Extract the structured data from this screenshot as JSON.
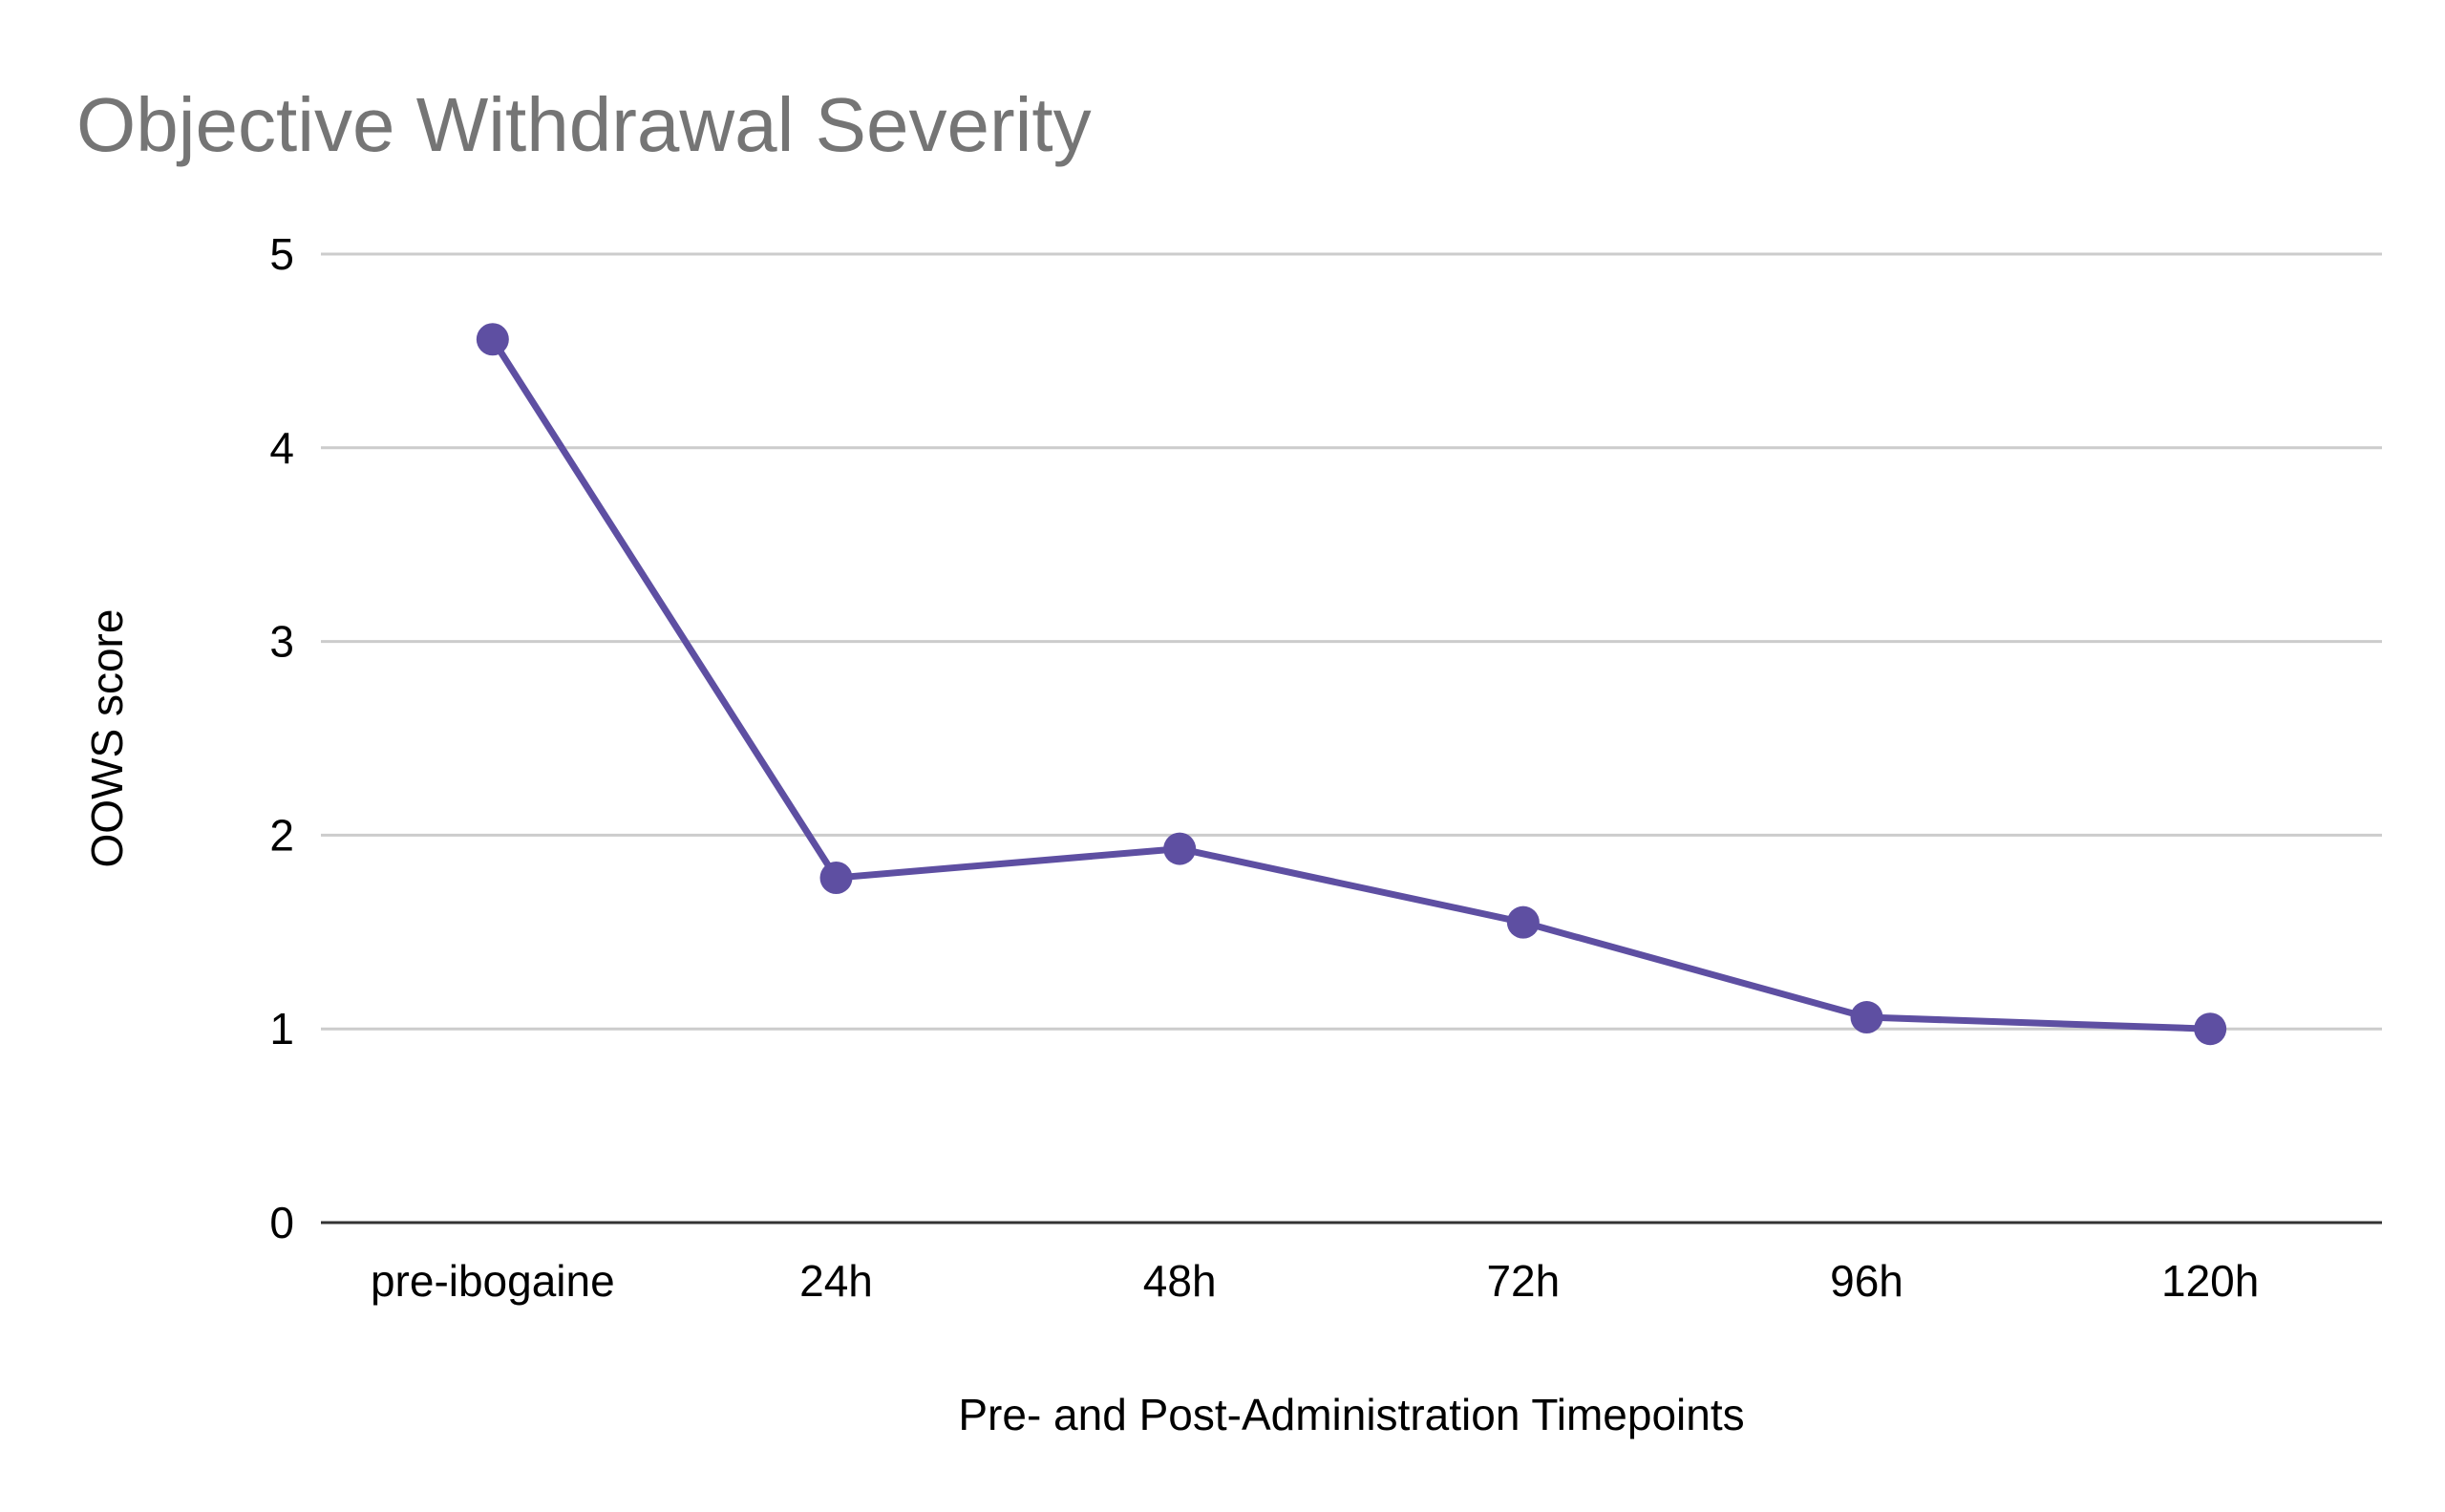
{
  "chart_data": {
    "type": "line",
    "title": "Objective Withdrawal Severity",
    "xlabel": "Pre- and Post-Administration Timepoints",
    "ylabel": "OOWS score",
    "categories": [
      "pre-ibogaine",
      "24h",
      "48h",
      "72h",
      "96h",
      "120h"
    ],
    "values": [
      4.56,
      1.78,
      1.93,
      1.55,
      1.06,
      1.0
    ],
    "ylim": [
      0,
      5
    ],
    "yticks": [
      "0",
      "1",
      "2",
      "3",
      "4",
      "5"
    ],
    "grid": true,
    "legend": "none",
    "colors": {
      "series": "#5e4fa2",
      "grid": "#cccccc",
      "axis": "#333333",
      "title": "#757575"
    }
  }
}
